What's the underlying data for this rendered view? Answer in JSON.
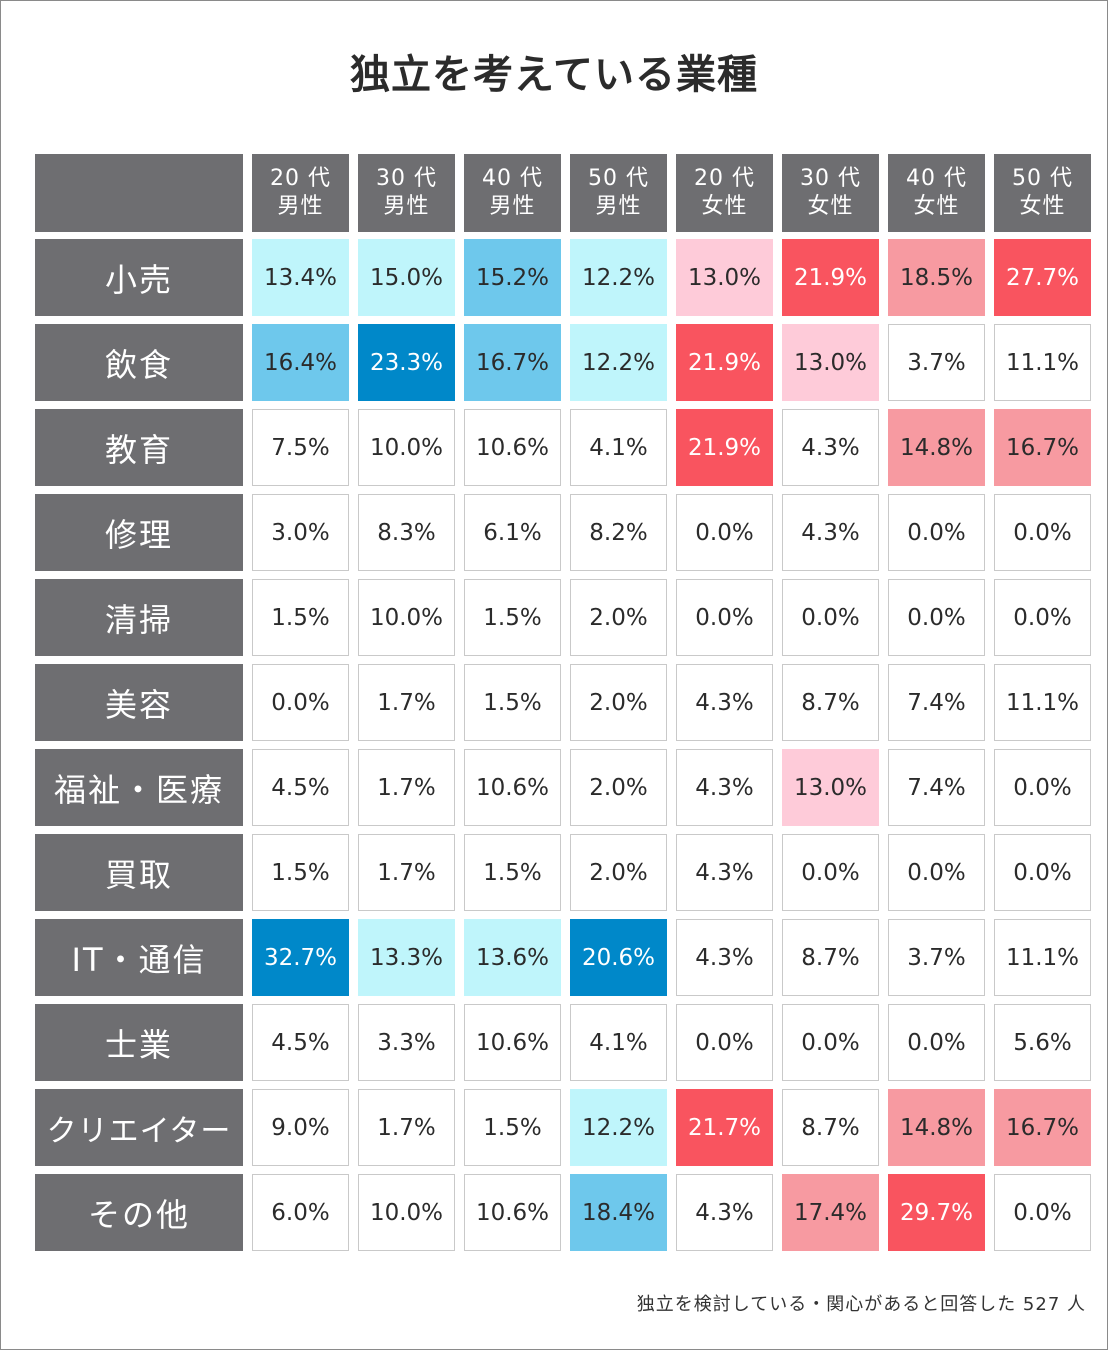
{
  "chart_data": {
    "type": "table",
    "title": "独立を考えている業種",
    "columns": [
      {
        "line1": "20 代",
        "line2": "男性"
      },
      {
        "line1": "30 代",
        "line2": "男性"
      },
      {
        "line1": "40 代",
        "line2": "男性"
      },
      {
        "line1": "50 代",
        "line2": "男性"
      },
      {
        "line1": "20 代",
        "line2": "女性"
      },
      {
        "line1": "30 代",
        "line2": "女性"
      },
      {
        "line1": "40 代",
        "line2": "女性"
      },
      {
        "line1": "50 代",
        "line2": "女性"
      }
    ],
    "rows": [
      {
        "label": "小売",
        "values": [
          13.4,
          15.0,
          15.2,
          12.2,
          13.0,
          21.9,
          18.5,
          27.7
        ]
      },
      {
        "label": "飲食",
        "values": [
          16.4,
          23.3,
          16.7,
          12.2,
          21.9,
          13.0,
          3.7,
          11.1
        ]
      },
      {
        "label": "教育",
        "values": [
          7.5,
          10.0,
          10.6,
          4.1,
          21.9,
          4.3,
          14.8,
          16.7
        ]
      },
      {
        "label": "修理",
        "values": [
          3.0,
          8.3,
          6.1,
          8.2,
          0.0,
          4.3,
          0.0,
          0.0
        ]
      },
      {
        "label": "清掃",
        "values": [
          1.5,
          10.0,
          1.5,
          2.0,
          0.0,
          0.0,
          0.0,
          0.0
        ]
      },
      {
        "label": "美容",
        "values": [
          0.0,
          1.7,
          1.5,
          2.0,
          4.3,
          8.7,
          7.4,
          11.1
        ]
      },
      {
        "label": "福祉・医療",
        "values": [
          4.5,
          1.7,
          10.6,
          2.0,
          4.3,
          13.0,
          7.4,
          0.0
        ]
      },
      {
        "label": "買取",
        "values": [
          1.5,
          1.7,
          1.5,
          2.0,
          4.3,
          0.0,
          0.0,
          0.0
        ]
      },
      {
        "label": "IT・通信",
        "values": [
          32.7,
          13.3,
          13.6,
          20.6,
          4.3,
          8.7,
          3.7,
          11.1
        ]
      },
      {
        "label": "士業",
        "values": [
          4.5,
          3.3,
          10.6,
          4.1,
          0.0,
          0.0,
          0.0,
          5.6
        ]
      },
      {
        "label": "クリエイター",
        "values": [
          9.0,
          1.7,
          1.5,
          12.2,
          21.7,
          8.7,
          14.8,
          16.7
        ]
      },
      {
        "label": "その他",
        "values": [
          6.0,
          10.0,
          10.6,
          18.4,
          4.3,
          17.4,
          29.7,
          0.0
        ]
      }
    ],
    "value_suffix": "%",
    "highlight_levels": {
      "male": [
        [
          20,
          "#0088c9"
        ],
        [
          15.2,
          "#6ec8ec"
        ],
        [
          12.2,
          "#bff5fb"
        ]
      ],
      "female": [
        [
          20,
          "#f9545f"
        ],
        [
          14.8,
          "#f79aa1"
        ],
        [
          13.0,
          "#fecbd9"
        ]
      ]
    },
    "colors": {
      "header_bg": "#6e6e71",
      "header_text": "#ffffff",
      "cell_text": "#2b2b2b",
      "cell_border": "#c9c9c9"
    },
    "footnote": "独立を検討している・関心があると回答した 527 人"
  }
}
